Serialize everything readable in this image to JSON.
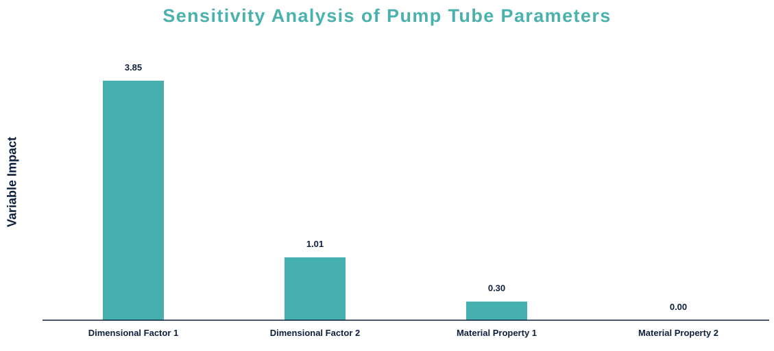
{
  "chart_data": {
    "type": "bar",
    "title": "Sensitivity Analysis of Pump Tube Parameters",
    "xlabel": "",
    "ylabel": "Variable Impact",
    "categories": [
      "Dimensional Factor 1",
      "Dimensional Factor 2",
      "Material Property 1",
      "Material Property 2"
    ],
    "values": [
      3.85,
      1.01,
      0.3,
      0.0
    ],
    "value_labels": [
      "3.85",
      "1.01",
      "0.30",
      "0.00"
    ],
    "ylim": [
      0,
      4.3
    ],
    "grid": false,
    "legend": "none"
  },
  "colors": {
    "bar": "#45b0ae",
    "title": "#4bb1ad",
    "text": "#0d1f3c",
    "axis": "#0d1f3c"
  }
}
